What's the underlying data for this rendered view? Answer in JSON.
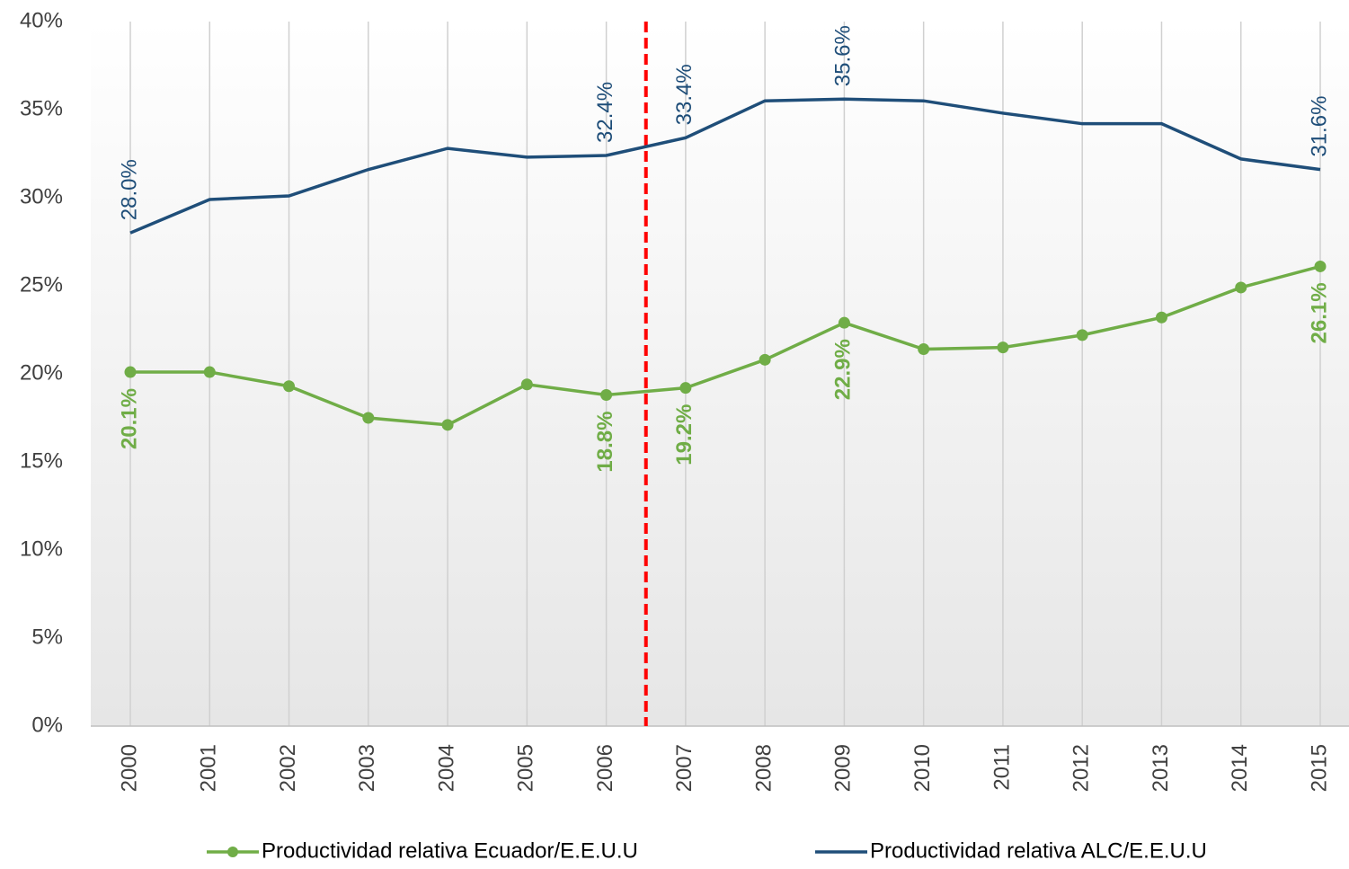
{
  "chart_data": {
    "type": "line",
    "categories": [
      "2000",
      "2001",
      "2002",
      "2003",
      "2004",
      "2005",
      "2006",
      "2007",
      "2008",
      "2009",
      "2010",
      "2011",
      "2012",
      "2013",
      "2014",
      "2015"
    ],
    "series": [
      {
        "name": "Productividad relativa Ecuador/E.E.U.U",
        "color": "#70ad47",
        "markers": true,
        "values": [
          20.1,
          20.1,
          19.3,
          17.5,
          17.1,
          19.4,
          18.8,
          19.2,
          20.8,
          22.9,
          21.4,
          21.5,
          22.2,
          23.2,
          24.9,
          26.1
        ],
        "value_labels": [
          "20.1%",
          null,
          null,
          null,
          null,
          null,
          "18.8%",
          "19.2%",
          null,
          "22.9%",
          null,
          null,
          null,
          null,
          null,
          "26.1%"
        ]
      },
      {
        "name": "Productividad relativa ALC/E.E.U.U",
        "color": "#1f4e79",
        "markers": false,
        "values": [
          28.0,
          29.9,
          30.1,
          31.6,
          32.8,
          32.3,
          32.4,
          33.4,
          35.5,
          35.6,
          35.5,
          34.8,
          34.2,
          34.2,
          32.2,
          31.6
        ],
        "value_labels": [
          "28.0%",
          null,
          null,
          null,
          null,
          null,
          "32.4%",
          "33.4%",
          null,
          "35.6%",
          null,
          null,
          null,
          null,
          null,
          "31.6%"
        ]
      }
    ],
    "ylim": [
      0,
      40
    ],
    "yticks": [
      {
        "value": 0,
        "label": "0%"
      },
      {
        "value": 5,
        "label": "5%"
      },
      {
        "value": 10,
        "label": "10%"
      },
      {
        "value": 15,
        "label": "15%"
      },
      {
        "value": 20,
        "label": "20%"
      },
      {
        "value": 25,
        "label": "25%"
      },
      {
        "value": 30,
        "label": "30%"
      },
      {
        "value": 35,
        "label": "35%"
      },
      {
        "value": 40,
        "label": "40%"
      }
    ],
    "grid": "x",
    "legend": "bottom"
  }
}
